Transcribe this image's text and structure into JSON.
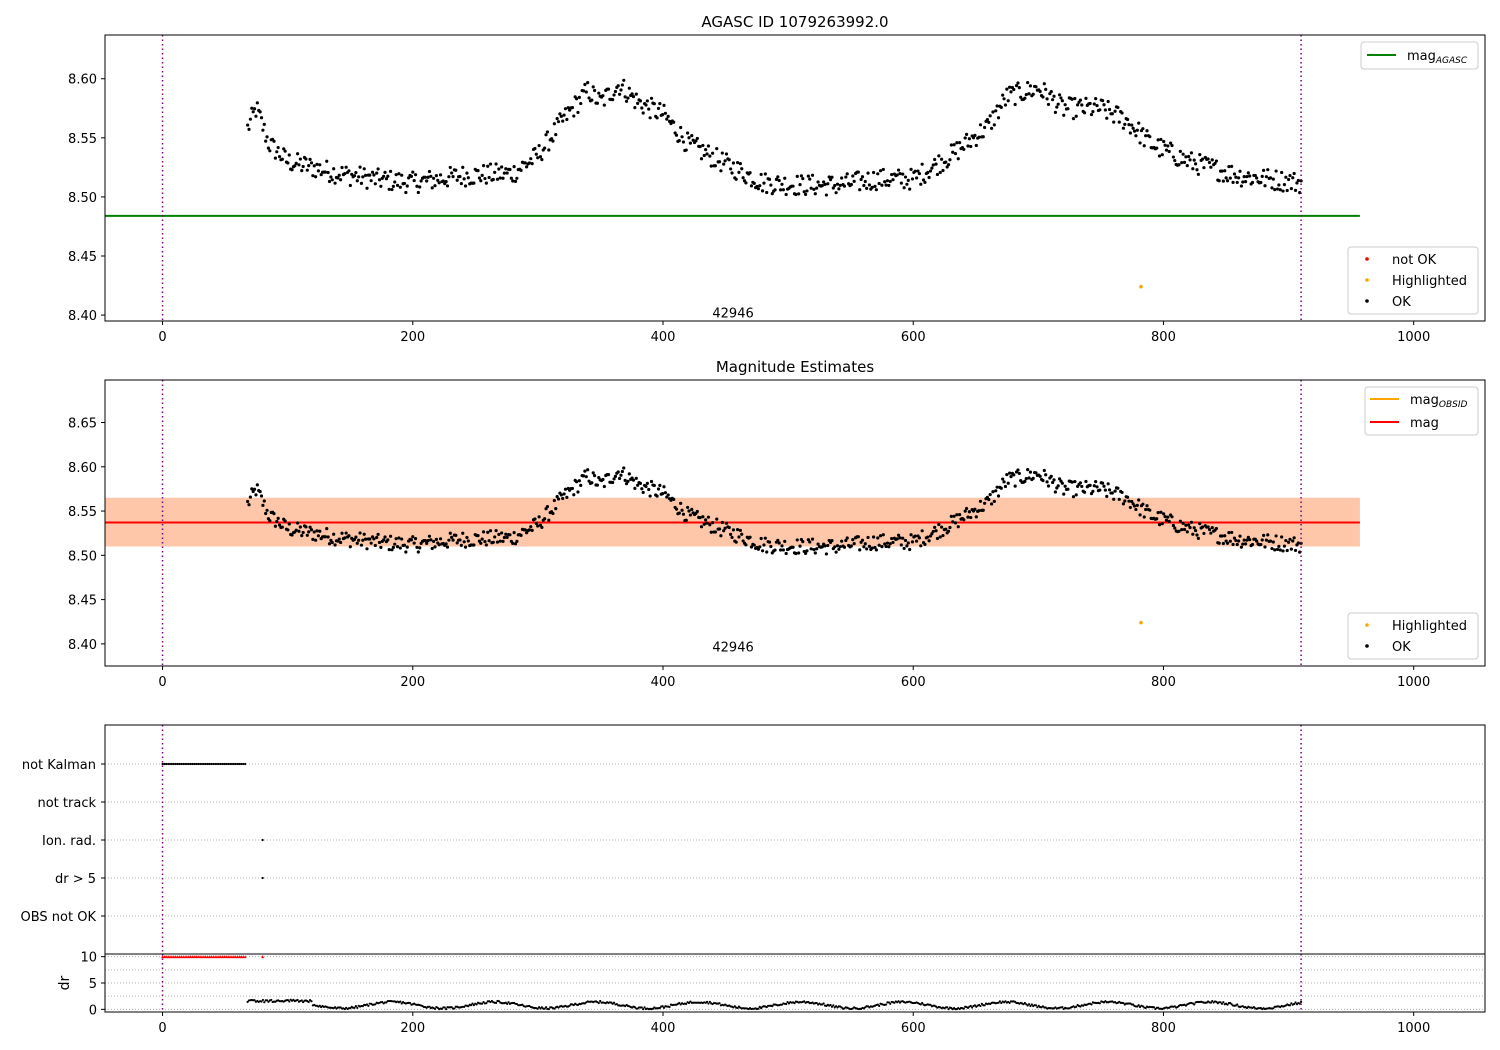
{
  "chart_data": [
    {
      "type": "scatter",
      "title": "AGASC ID 1079263992.0",
      "xlim": [
        -46,
        1057
      ],
      "ylim": [
        8.395,
        8.637
      ],
      "xticks": [
        0,
        200,
        400,
        600,
        800,
        1000
      ],
      "yticks": [
        8.4,
        8.45,
        8.5,
        8.55,
        8.6
      ],
      "vlines": [
        0,
        910
      ],
      "hlines": [
        {
          "name": "mag_AGASC",
          "y": 8.484,
          "x": [
            -46,
            957
          ],
          "color": "#008000"
        }
      ],
      "obsid_label": {
        "text": "42946",
        "x": 456,
        "y": 8.402
      },
      "highlighted": [
        {
          "x": 782,
          "y": 8.424
        }
      ],
      "series_colors": {
        "not OK": "#ff0000",
        "Highlighted": "#ffa500",
        "OK": "#000000"
      },
      "ok_series": {
        "x_range": [
          68,
          910
        ],
        "n": 760,
        "description_only": false
      },
      "legend_lines": [
        {
          "label": "mag",
          "sub": "AGASC",
          "color": "#008000"
        }
      ],
      "legend_points": [
        {
          "label": "not OK",
          "color": "#ff0000"
        },
        {
          "label": "Highlighted",
          "color": "#ffa500"
        },
        {
          "label": "OK",
          "color": "#000000"
        }
      ]
    },
    {
      "type": "scatter",
      "title": "Magnitude Estimates",
      "xlim": [
        -46,
        1057
      ],
      "ylim": [
        8.375,
        8.698
      ],
      "xticks": [
        0,
        200,
        400,
        600,
        800,
        1000
      ],
      "yticks": [
        8.4,
        8.45,
        8.5,
        8.55,
        8.6,
        8.65
      ],
      "vlines": [
        0,
        910
      ],
      "hlines": [
        {
          "name": "mag",
          "y": 8.537,
          "x": [
            -46,
            957
          ],
          "color": "#ff0000"
        }
      ],
      "bands": [
        {
          "y": [
            8.51,
            8.565
          ],
          "x": [
            -46,
            957
          ],
          "color": "#ffb6c1",
          "opacity": 0.4
        },
        {
          "y": [
            8.51,
            8.565
          ],
          "x": [
            -46,
            957
          ],
          "color": "#ffa500",
          "opacity": 0.2
        }
      ],
      "obsid_label": {
        "text": "42946",
        "x": 456,
        "y": 8.397
      },
      "highlighted": [
        {
          "x": 782,
          "y": 8.424
        }
      ],
      "legend_lines": [
        {
          "label": "mag",
          "sub": "OBSID",
          "color": "#ffa500"
        },
        {
          "label": "mag",
          "sub": "",
          "color": "#ff0000"
        }
      ],
      "legend_points": [
        {
          "label": "Highlighted",
          "color": "#ffa500"
        },
        {
          "label": "OK",
          "color": "#000000"
        }
      ]
    },
    {
      "type": "scatter",
      "title": "",
      "xlim": [
        -46,
        1057
      ],
      "categories": [
        "not Kalman",
        "not track",
        "Ion. rad.",
        "dr > 5",
        "OBS not OK"
      ],
      "flags": {
        "not Kalman": {
          "x_range": [
            0,
            67
          ]
        },
        "not track": {
          "x_range": []
        },
        "Ion. rad.": {
          "x": [
            80
          ]
        },
        "dr > 5": {
          "x": [
            80
          ]
        },
        "OBS not OK": {
          "x_range": []
        }
      }
    },
    {
      "type": "scatter",
      "title": "",
      "ylabel": "dr",
      "xlim": [
        -46,
        1057
      ],
      "ylim": [
        -0.5,
        10.5
      ],
      "xticks": [
        0,
        200,
        400,
        600,
        800,
        1000
      ],
      "yticks": [
        0,
        5,
        10
      ],
      "clipped": {
        "x_range": [
          0,
          67
        ],
        "extra_x": [
          80
        ],
        "y": 10,
        "color": "#ff0000"
      },
      "vlines": [
        0,
        910
      ]
    }
  ]
}
